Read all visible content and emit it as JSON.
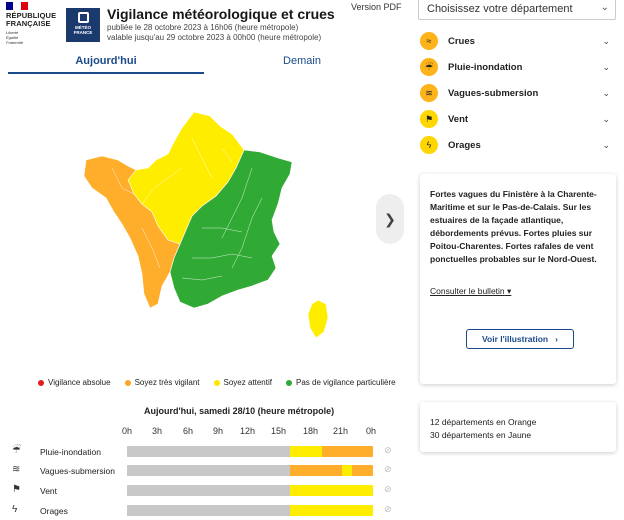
{
  "header": {
    "republique_line1": "RÉPUBLIQUE",
    "republique_line2": "FRANÇAISE",
    "motto": [
      "Liberté",
      "Égalité",
      "Fraternité"
    ],
    "mf_logo_line1": "MÉTÉO",
    "mf_logo_line2": "FRANCE",
    "title": "Vigilance météorologique et crues",
    "published": "publiée le 28 octobre 2023 à 16h06 (heure métropole)",
    "valid": "valable jusqu'au 29 octobre 2023 à 00h00 (heure métropole)",
    "version_pdf": "Version PDF"
  },
  "tabs": [
    {
      "label": "Aujourd'hui",
      "active": true
    },
    {
      "label": "Demain",
      "active": false
    }
  ],
  "legend": [
    {
      "label": "Vigilance absolue",
      "color": "#e01c1c"
    },
    {
      "label": "Soyez très vigilant",
      "color": "#ffa526"
    },
    {
      "label": "Soyez attentif",
      "color": "#ffe600"
    },
    {
      "label": "Pas de vigilance particulière",
      "color": "#31aa35"
    }
  ],
  "colors": {
    "green": "#31aa35",
    "yellow": "#ffed00",
    "orange": "#ffae2b",
    "gray": "#c8c8c8",
    "accent": "#1a4a8a"
  },
  "timeline": {
    "title": "Aujourd'hui, samedi 28/10 (heure métropole)",
    "hours": [
      "0h",
      "3h",
      "6h",
      "9h",
      "12h",
      "15h",
      "18h",
      "21h",
      "0h"
    ],
    "rows": [
      {
        "label": "Pluie-inondation",
        "icon": "rain-flood-icon",
        "segments": [
          {
            "level": "gray",
            "fraction": 0.664
          },
          {
            "level": "yellow",
            "fraction": 0.128
          },
          {
            "level": "orange",
            "fraction": 0.208
          }
        ]
      },
      {
        "label": "Vagues-submersion",
        "icon": "waves-icon",
        "segments": [
          {
            "level": "gray",
            "fraction": 0.664
          },
          {
            "level": "orange",
            "fraction": 0.208
          },
          {
            "level": "yellow",
            "fraction": 0.044
          },
          {
            "level": "orange",
            "fraction": 0.084
          }
        ]
      },
      {
        "label": "Vent",
        "icon": "wind-icon",
        "segments": [
          {
            "level": "gray",
            "fraction": 0.664
          },
          {
            "level": "yellow",
            "fraction": 0.336
          }
        ]
      },
      {
        "label": "Orages",
        "icon": "thunderstorm-icon",
        "segments": [
          {
            "level": "gray",
            "fraction": 0.664
          },
          {
            "level": "yellow",
            "fraction": 0.336
          }
        ]
      }
    ]
  },
  "sidebar": {
    "select_placeholder": "Choisissez votre département",
    "phenomena": [
      {
        "label": "Crues",
        "icon": "flood-icon",
        "level": "orange"
      },
      {
        "label": "Pluie-inondation",
        "icon": "rain-flood-icon",
        "level": "orange"
      },
      {
        "label": "Vagues-submersion",
        "icon": "waves-icon",
        "level": "orange"
      },
      {
        "label": "Vent",
        "icon": "wind-icon",
        "level": "yellow"
      },
      {
        "label": "Orages",
        "icon": "thunderstorm-icon",
        "level": "yellow"
      }
    ],
    "bulletin_text": "Fortes vagues du Finistère à la Charente-Maritime et sur le Pas-de-Calais. Sur les estuaires de la façade atlantique, débordements prévus. Fortes pluies sur Poitou-Charentes. Fortes rafales de vent ponctuelles probables sur le Nord-Ouest.",
    "consult_label": "Consulter le bulletin",
    "illustration_label": "Voir l'illustration",
    "counts": [
      "12 départements en Orange",
      "30 départements en Jaune"
    ]
  }
}
